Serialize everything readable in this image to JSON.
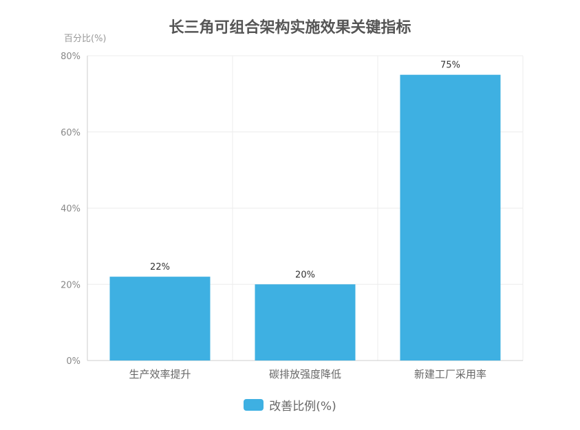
{
  "colors": {
    "bar": "#3eb0e2",
    "grid": "#ececec",
    "axis": "#cccccc"
  },
  "chart_data": {
    "type": "bar",
    "title": "长三角可组合架构实施效果关键指标",
    "ylabel": "百分比(%)",
    "xlabel": "",
    "categories": [
      "生产效率提升",
      "碳排放强度降低",
      "新建工厂采用率"
    ],
    "series": [
      {
        "name": "改善比例(%)",
        "values": [
          22,
          20,
          75
        ],
        "data_labels": [
          "22%",
          "20%",
          "75%"
        ]
      }
    ],
    "ylim": [
      0,
      80
    ],
    "yticks": [
      0,
      20,
      40,
      60,
      80
    ],
    "ytick_labels": [
      "0%",
      "20%",
      "40%",
      "60%",
      "80%"
    ],
    "grid": true,
    "legend_position": "bottom-center"
  }
}
